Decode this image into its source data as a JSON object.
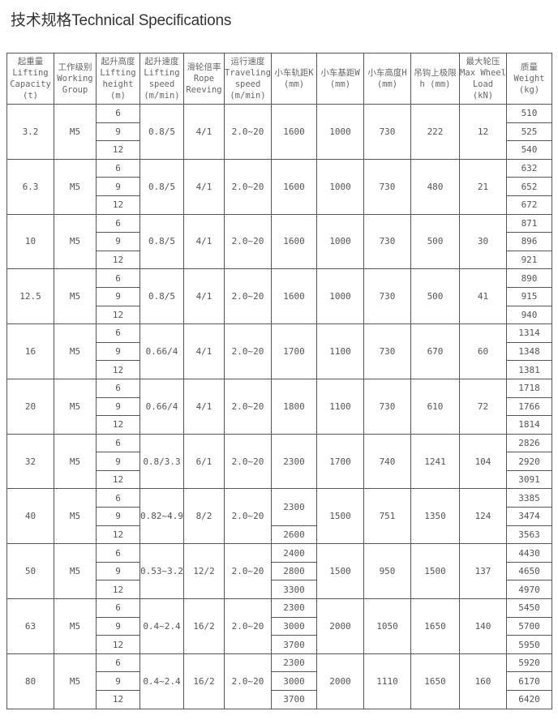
{
  "title": "技术规格Technical Specifications",
  "columns": [
    [
      "起重量",
      "Lifting",
      "Capacity",
      "(t)"
    ],
    [
      "工作级别",
      "Working",
      "Group"
    ],
    [
      "起升高度",
      "Lifting",
      "height",
      "(m)"
    ],
    [
      "起升速度",
      "Lifting",
      "speed",
      "(m/min)"
    ],
    [
      "滑轮倍率",
      "Rope",
      "Reeving"
    ],
    [
      "运行速度",
      "Traveling",
      "speed",
      "(m/min)"
    ],
    [
      "小车轨距K",
      "(mm)"
    ],
    [
      "小车基距W",
      "(mm)"
    ],
    [
      "小车高度H",
      "(mm)"
    ],
    [
      "吊钩上极限",
      "h (mm)"
    ],
    [
      "最大轮压",
      "Max Wheel",
      "Load",
      "(kN)"
    ],
    [
      "质量",
      "Weight",
      "(kg)"
    ]
  ],
  "rows": [
    {
      "capacity": "3.2",
      "group": "M5",
      "heights": [
        "6",
        "9",
        "12"
      ],
      "speed": "0.8/5",
      "reeving": "4/1",
      "travel": "2.0~20",
      "k": [
        "1600"
      ],
      "w": "1000",
      "h": "730",
      "hook": "222",
      "wheel": "12",
      "weights": [
        "510",
        "525",
        "540"
      ]
    },
    {
      "capacity": "6.3",
      "group": "M5",
      "heights": [
        "6",
        "9",
        "12"
      ],
      "speed": "0.8/5",
      "reeving": "4/1",
      "travel": "2.0~20",
      "k": [
        "1600"
      ],
      "w": "1000",
      "h": "730",
      "hook": "480",
      "wheel": "21",
      "weights": [
        "632",
        "652",
        "672"
      ]
    },
    {
      "capacity": "10",
      "group": "M5",
      "heights": [
        "6",
        "9",
        "12"
      ],
      "speed": "0.8/5",
      "reeving": "4/1",
      "travel": "2.0~20",
      "k": [
        "1600"
      ],
      "w": "1000",
      "h": "730",
      "hook": "500",
      "wheel": "30",
      "weights": [
        "871",
        "896",
        "921"
      ]
    },
    {
      "capacity": "12.5",
      "group": "M5",
      "heights": [
        "6",
        "9",
        "12"
      ],
      "speed": "0.8/5",
      "reeving": "4/1",
      "travel": "2.0~20",
      "k": [
        "1600"
      ],
      "w": "1000",
      "h": "730",
      "hook": "500",
      "wheel": "41",
      "weights": [
        "890",
        "915",
        "940"
      ]
    },
    {
      "capacity": "16",
      "group": "M5",
      "heights": [
        "6",
        "9",
        "12"
      ],
      "speed": "0.66/4",
      "reeving": "4/1",
      "travel": "2.0~20",
      "k": [
        "1700"
      ],
      "w": "1100",
      "h": "730",
      "hook": "670",
      "wheel": "60",
      "weights": [
        "1314",
        "1348",
        "1381"
      ]
    },
    {
      "capacity": "20",
      "group": "M5",
      "heights": [
        "6",
        "9",
        "12"
      ],
      "speed": "0.66/4",
      "reeving": "4/1",
      "travel": "2.0~20",
      "k": [
        "1800"
      ],
      "w": "1100",
      "h": "730",
      "hook": "610",
      "wheel": "72",
      "weights": [
        "1718",
        "1766",
        "1814"
      ]
    },
    {
      "capacity": "32",
      "group": "M5",
      "heights": [
        "6",
        "9",
        "12"
      ],
      "speed": "0.8/3.3",
      "reeving": "6/1",
      "travel": "2.0~20",
      "k": [
        "2300"
      ],
      "w": "1700",
      "h": "740",
      "hook": "1241",
      "wheel": "104",
      "weights": [
        "2826",
        "2920",
        "3091"
      ]
    },
    {
      "capacity": "40",
      "group": "M5",
      "heights": [
        "6",
        "9",
        "12"
      ],
      "speed": "0.82~4.9",
      "reeving": "8/2",
      "travel": "2.0~20",
      "k": [
        "2300",
        "2600"
      ],
      "w": "1500",
      "h": "751",
      "hook": "1350",
      "wheel": "124",
      "weights": [
        "3385",
        "3474",
        "3563"
      ]
    },
    {
      "capacity": "50",
      "group": "M5",
      "heights": [
        "6",
        "9",
        "12"
      ],
      "speed": "0.53~3.2",
      "reeving": "12/2",
      "travel": "2.0~20",
      "k": [
        "2400",
        "2800",
        "3300"
      ],
      "w": "1500",
      "h": "950",
      "hook": "1500",
      "wheel": "137",
      "weights": [
        "4430",
        "4650",
        "4970"
      ]
    },
    {
      "capacity": "63",
      "group": "M5",
      "heights": [
        "6",
        "9",
        "12"
      ],
      "speed": "0.4~2.4",
      "reeving": "16/2",
      "travel": "2.0~20",
      "k": [
        "2300",
        "3000",
        "3700"
      ],
      "w": "2000",
      "h": "1050",
      "hook": "1650",
      "wheel": "140",
      "weights": [
        "5450",
        "5700",
        "5950"
      ]
    },
    {
      "capacity": "80",
      "group": "M5",
      "heights": [
        "6",
        "9",
        "12"
      ],
      "speed": "0.4~2.4",
      "reeving": "16/2",
      "travel": "2.0~20",
      "k": [
        "2300",
        "3000",
        "3700"
      ],
      "w": "2000",
      "h": "1110",
      "hook": "1650",
      "wheel": "160",
      "weights": [
        "5920",
        "6170",
        "6420"
      ]
    }
  ]
}
